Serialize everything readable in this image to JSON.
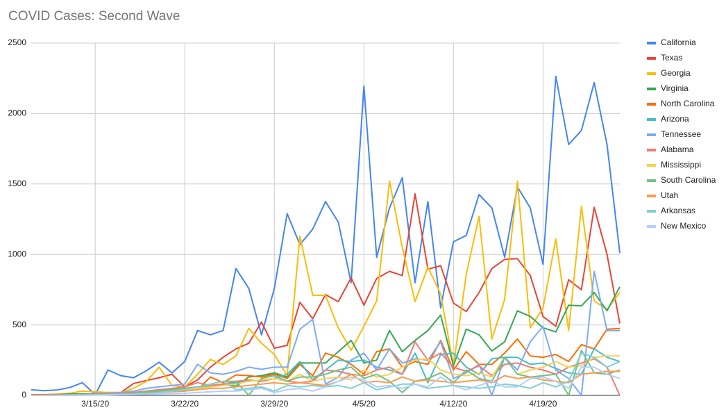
{
  "chart_data": {
    "type": "line",
    "title": "COVID Cases: Second Wave",
    "categories": [
      null,
      null,
      null,
      null,
      null,
      "3/15/20",
      null,
      null,
      null,
      null,
      null,
      null,
      "3/22/20",
      null,
      null,
      null,
      null,
      null,
      null,
      "3/29/20",
      null,
      null,
      null,
      null,
      null,
      null,
      "4/5/20",
      null,
      null,
      null,
      null,
      null,
      null,
      "4/12/20",
      null,
      null,
      null,
      null,
      null,
      null,
      "4/19/20",
      null,
      null,
      null,
      null,
      null,
      null
    ],
    "ylim": [
      0,
      2500
    ],
    "yticks": [
      0,
      500,
      1000,
      1500,
      2000,
      2500
    ],
    "grid": true,
    "legend": "right",
    "series": [
      {
        "name": "California",
        "color": "#4285f4",
        "values": [
          40,
          33,
          38,
          55,
          90,
          5,
          180,
          140,
          125,
          175,
          235,
          160,
          240,
          460,
          430,
          460,
          900,
          760,
          430,
          760,
          1290,
          1070,
          1180,
          1375,
          1230,
          800,
          2195,
          980,
          1330,
          1545,
          800,
          1375,
          620,
          1090,
          1135,
          1425,
          1330,
          980,
          1480,
          1330,
          930,
          2265,
          1780,
          1880,
          2220,
          1780,
          1010
        ]
      },
      {
        "name": "Texas",
        "color": "#ea4335",
        "values": [
          5,
          5,
          8,
          10,
          10,
          10,
          20,
          20,
          85,
          105,
          125,
          150,
          60,
          110,
          200,
          270,
          330,
          370,
          520,
          335,
          355,
          660,
          545,
          715,
          665,
          835,
          640,
          830,
          880,
          850,
          1430,
          895,
          920,
          655,
          595,
          730,
          900,
          965,
          970,
          850,
          560,
          490,
          820,
          750,
          1335,
          1000,
          510
        ]
      },
      {
        "name": "Georgia",
        "color": "#fbbc04",
        "values": [
          5,
          5,
          10,
          15,
          30,
          25,
          20,
          20,
          50,
          100,
          200,
          70,
          60,
          150,
          255,
          220,
          280,
          475,
          370,
          290,
          140,
          1130,
          710,
          710,
          480,
          320,
          490,
          670,
          1520,
          1050,
          665,
          910,
          720,
          210,
          860,
          1270,
          400,
          680,
          1520,
          480,
          620,
          1110,
          460,
          1340,
          670,
          610,
          730
        ]
      },
      {
        "name": "Virginia",
        "color": "#34a853",
        "values": [
          5,
          5,
          5,
          10,
          10,
          10,
          15,
          15,
          20,
          30,
          40,
          40,
          50,
          60,
          60,
          80,
          65,
          130,
          140,
          160,
          130,
          230,
          230,
          230,
          310,
          390,
          230,
          250,
          460,
          310,
          390,
          460,
          570,
          210,
          470,
          430,
          315,
          380,
          600,
          560,
          480,
          450,
          640,
          635,
          730,
          600,
          770
        ]
      },
      {
        "name": "North Carolina",
        "color": "#ff6d01",
        "values": [
          5,
          5,
          5,
          5,
          5,
          10,
          10,
          10,
          15,
          25,
          30,
          40,
          50,
          40,
          130,
          90,
          145,
          140,
          130,
          150,
          120,
          220,
          140,
          300,
          270,
          220,
          150,
          310,
          330,
          200,
          240,
          220,
          390,
          180,
          310,
          220,
          220,
          300,
          400,
          280,
          270,
          290,
          240,
          360,
          330,
          470,
          475
        ]
      },
      {
        "name": "Arizona",
        "color": "#46bdc6",
        "values": [
          0,
          0,
          0,
          2,
          3,
          5,
          8,
          10,
          15,
          20,
          30,
          40,
          50,
          60,
          70,
          80,
          90,
          100,
          110,
          120,
          150,
          240,
          110,
          180,
          250,
          240,
          250,
          200,
          180,
          150,
          300,
          90,
          290,
          300,
          200,
          150,
          260,
          270,
          270,
          220,
          230,
          190,
          160,
          150,
          330,
          270,
          240
        ]
      },
      {
        "name": "Tennessee",
        "color": "#7baaf7",
        "values": [
          0,
          0,
          2,
          5,
          5,
          8,
          15,
          20,
          30,
          50,
          60,
          70,
          80,
          220,
          160,
          150,
          170,
          200,
          185,
          200,
          200,
          470,
          540,
          80,
          130,
          250,
          300,
          180,
          330,
          230,
          260,
          250,
          380,
          120,
          160,
          220,
          0,
          270,
          180,
          380,
          490,
          180,
          120,
          0,
          880,
          460,
          460
        ]
      },
      {
        "name": "Alabama",
        "color": "#f07b72",
        "values": [
          0,
          0,
          2,
          3,
          5,
          5,
          8,
          10,
          20,
          30,
          40,
          50,
          60,
          90,
          70,
          80,
          100,
          110,
          100,
          120,
          100,
          90,
          100,
          180,
          170,
          150,
          140,
          180,
          200,
          150,
          380,
          250,
          300,
          200,
          170,
          210,
          140,
          220,
          230,
          200,
          180,
          150,
          200,
          230,
          260,
          200,
          0
        ]
      },
      {
        "name": "Mississippi",
        "color": "#fcd04f",
        "values": [
          0,
          0,
          1,
          2,
          3,
          5,
          5,
          8,
          10,
          15,
          20,
          30,
          40,
          50,
          60,
          70,
          80,
          100,
          110,
          120,
          100,
          150,
          100,
          120,
          130,
          110,
          180,
          130,
          150,
          200,
          250,
          260,
          180,
          150,
          140,
          160,
          130,
          270,
          150,
          180,
          200,
          240,
          200,
          210,
          270,
          280,
          280
        ]
      },
      {
        "name": "South Carolina",
        "color": "#71c287",
        "values": [
          0,
          0,
          1,
          2,
          3,
          5,
          6,
          8,
          15,
          25,
          30,
          40,
          50,
          60,
          80,
          100,
          100,
          0,
          120,
          140,
          100,
          130,
          130,
          150,
          180,
          200,
          120,
          150,
          100,
          20,
          100,
          120,
          160,
          90,
          180,
          120,
          100,
          270,
          150,
          130,
          140,
          150,
          0,
          320,
          160,
          150,
          180
        ]
      },
      {
        "name": "Utah",
        "color": "#ff994d",
        "values": [
          0,
          0,
          0,
          1,
          2,
          3,
          5,
          8,
          10,
          15,
          20,
          25,
          30,
          40,
          50,
          50,
          60,
          70,
          80,
          90,
          80,
          90,
          80,
          70,
          100,
          150,
          90,
          100,
          90,
          130,
          100,
          110,
          100,
          90,
          100,
          110,
          90,
          140,
          120,
          130,
          110,
          100,
          90,
          150,
          160,
          170,
          170
        ]
      },
      {
        "name": "Arkansas",
        "color": "#7ed1d7",
        "values": [
          0,
          0,
          0,
          1,
          2,
          3,
          5,
          6,
          10,
          12,
          20,
          30,
          40,
          60,
          80,
          100,
          40,
          50,
          60,
          30,
          70,
          60,
          70,
          60,
          70,
          50,
          90,
          40,
          60,
          80,
          80,
          50,
          60,
          70,
          60,
          50,
          60,
          80,
          70,
          50,
          90,
          60,
          100,
          300,
          270,
          200,
          240
        ]
      },
      {
        "name": "New Mexico",
        "color": "#b3cefb",
        "values": [
          0,
          0,
          0,
          1,
          1,
          2,
          3,
          5,
          6,
          8,
          10,
          12,
          15,
          20,
          25,
          30,
          30,
          40,
          50,
          20,
          40,
          50,
          30,
          60,
          100,
          130,
          110,
          60,
          70,
          50,
          80,
          60,
          130,
          70,
          40,
          70,
          100,
          60,
          60,
          120,
          130,
          100,
          50,
          200,
          200,
          150,
          120
        ]
      }
    ]
  }
}
